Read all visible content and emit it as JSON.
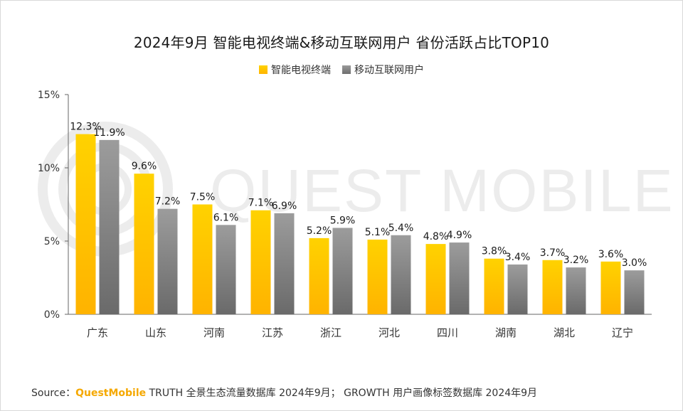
{
  "chart_data": {
    "type": "bar",
    "title": "2024年9月 智能电视终端&移动互联网用户 省份活跃占比TOP10",
    "categories": [
      "广东",
      "山东",
      "河南",
      "江苏",
      "浙江",
      "河北",
      "四川",
      "湖南",
      "湖北",
      "辽宁"
    ],
    "series": [
      {
        "name": "智能电视终端",
        "values": [
          12.3,
          9.6,
          7.5,
          7.1,
          5.2,
          5.1,
          4.8,
          3.8,
          3.7,
          3.6
        ],
        "labels": [
          "12.3%",
          "9.6%",
          "7.5%",
          "7.1%",
          "5.2%",
          "5.1%",
          "4.8%",
          "3.8%",
          "3.7%",
          "3.6%"
        ],
        "color": "#FFC000"
      },
      {
        "name": "移动互联网用户",
        "values": [
          11.9,
          7.2,
          6.1,
          6.9,
          5.9,
          5.4,
          4.9,
          3.4,
          3.2,
          3.0
        ],
        "labels": [
          "11.9%",
          "7.2%",
          "6.1%",
          "6.9%",
          "5.9%",
          "5.4%",
          "4.9%",
          "3.4%",
          "3.2%",
          "3.0%"
        ],
        "color": "#858585"
      }
    ],
    "ylim": [
      0,
      15
    ],
    "yticks": [
      0,
      5,
      10,
      15
    ],
    "ytick_labels": [
      "0%",
      "5%",
      "10%",
      "15%"
    ],
    "grid": false,
    "legend_position": "top-center"
  },
  "watermark": "QUEST MOBILE",
  "source": {
    "prefix": "Source：",
    "brand": "QuestMobile",
    "text": " TRUTH 全景生态流量数据库 2024年9月； GROWTH 用户画像标签数据库 2024年9月"
  }
}
